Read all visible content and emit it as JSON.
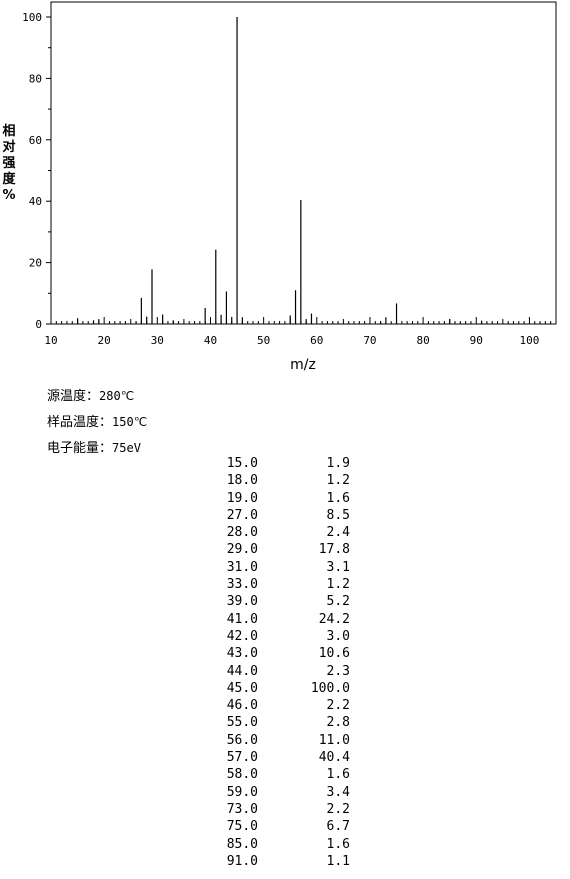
{
  "chart_data": {
    "type": "bar",
    "xlabel": "m/z",
    "ylabel_chars": [
      "相",
      "对",
      "强",
      "度",
      "%"
    ],
    "xlim": [
      10,
      105
    ],
    "ylim": [
      0,
      100
    ],
    "xticks": [
      10,
      20,
      30,
      40,
      50,
      60,
      70,
      80,
      90,
      100
    ],
    "yticks": [
      0,
      20,
      40,
      60,
      80,
      100
    ],
    "grid": false,
    "peaks": [
      {
        "mz": 15,
        "intensity": 1.9
      },
      {
        "mz": 18,
        "intensity": 1.2
      },
      {
        "mz": 19,
        "intensity": 1.6
      },
      {
        "mz": 26,
        "intensity": 0.8
      },
      {
        "mz": 27,
        "intensity": 8.5
      },
      {
        "mz": 28,
        "intensity": 2.4
      },
      {
        "mz": 29,
        "intensity": 17.8
      },
      {
        "mz": 31,
        "intensity": 3.1
      },
      {
        "mz": 33,
        "intensity": 1.2
      },
      {
        "mz": 39,
        "intensity": 5.2
      },
      {
        "mz": 41,
        "intensity": 24.2
      },
      {
        "mz": 42,
        "intensity": 3.0
      },
      {
        "mz": 43,
        "intensity": 10.6
      },
      {
        "mz": 44,
        "intensity": 2.3
      },
      {
        "mz": 45,
        "intensity": 100.0
      },
      {
        "mz": 46,
        "intensity": 2.2
      },
      {
        "mz": 55,
        "intensity": 2.8
      },
      {
        "mz": 56,
        "intensity": 11.0
      },
      {
        "mz": 57,
        "intensity": 40.4
      },
      {
        "mz": 58,
        "intensity": 1.6
      },
      {
        "mz": 59,
        "intensity": 3.4
      },
      {
        "mz": 72,
        "intensity": 0.8
      },
      {
        "mz": 73,
        "intensity": 2.2
      },
      {
        "mz": 75,
        "intensity": 6.7
      },
      {
        "mz": 85,
        "intensity": 1.6
      },
      {
        "mz": 91,
        "intensity": 1.1
      }
    ]
  },
  "conditions": [
    {
      "label": "源温度：",
      "value": "280℃"
    },
    {
      "label": "样品温度：",
      "value": "150℃"
    },
    {
      "label": "电子能量：",
      "value": "75eV"
    }
  ],
  "peak_table": [
    {
      "mz": "15.0",
      "intensity": "1.9"
    },
    {
      "mz": "18.0",
      "intensity": "1.2"
    },
    {
      "mz": "19.0",
      "intensity": "1.6"
    },
    {
      "mz": "27.0",
      "intensity": "8.5"
    },
    {
      "mz": "28.0",
      "intensity": "2.4"
    },
    {
      "mz": "29.0",
      "intensity": "17.8"
    },
    {
      "mz": "31.0",
      "intensity": "3.1"
    },
    {
      "mz": "33.0",
      "intensity": "1.2"
    },
    {
      "mz": "39.0",
      "intensity": "5.2"
    },
    {
      "mz": "41.0",
      "intensity": "24.2"
    },
    {
      "mz": "42.0",
      "intensity": "3.0"
    },
    {
      "mz": "43.0",
      "intensity": "10.6"
    },
    {
      "mz": "44.0",
      "intensity": "2.3"
    },
    {
      "mz": "45.0",
      "intensity": "100.0"
    },
    {
      "mz": "46.0",
      "intensity": "2.2"
    },
    {
      "mz": "55.0",
      "intensity": "2.8"
    },
    {
      "mz": "56.0",
      "intensity": "11.0"
    },
    {
      "mz": "57.0",
      "intensity": "40.4"
    },
    {
      "mz": "58.0",
      "intensity": "1.6"
    },
    {
      "mz": "59.0",
      "intensity": "3.4"
    },
    {
      "mz": "73.0",
      "intensity": "2.2"
    },
    {
      "mz": "75.0",
      "intensity": "6.7"
    },
    {
      "mz": "85.0",
      "intensity": "1.6"
    },
    {
      "mz": "91.0",
      "intensity": "1.1"
    }
  ]
}
